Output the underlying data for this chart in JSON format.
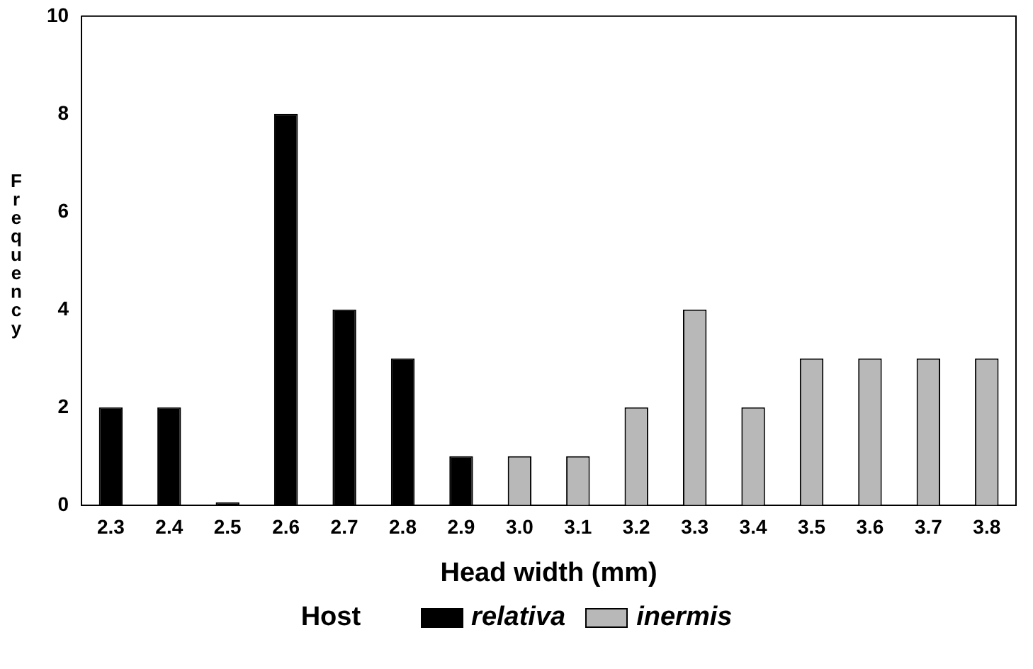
{
  "chart_data": {
    "type": "bar",
    "xlabel": "Head width (mm)",
    "ylabel": "Frequency",
    "legend_title": "Host",
    "categories": [
      "2.3",
      "2.4",
      "2.5",
      "2.6",
      "2.7",
      "2.8",
      "2.9",
      "3.0",
      "3.1",
      "3.2",
      "3.3",
      "3.4",
      "3.5",
      "3.6",
      "3.7",
      "3.8"
    ],
    "series": [
      {
        "name": "relativa",
        "color": "#000000",
        "values": [
          2,
          2,
          0,
          8,
          4,
          3,
          1,
          null,
          null,
          null,
          null,
          null,
          null,
          null,
          null,
          null
        ]
      },
      {
        "name": "inermis",
        "color": "#b8b8b8",
        "values": [
          null,
          null,
          null,
          null,
          null,
          null,
          null,
          1,
          1,
          2,
          4,
          2,
          3,
          3,
          3,
          3
        ]
      }
    ],
    "ylim": [
      0,
      10
    ],
    "yticks": [
      0,
      2,
      4,
      6,
      8,
      10
    ],
    "grid": false,
    "legend": "bottom"
  }
}
